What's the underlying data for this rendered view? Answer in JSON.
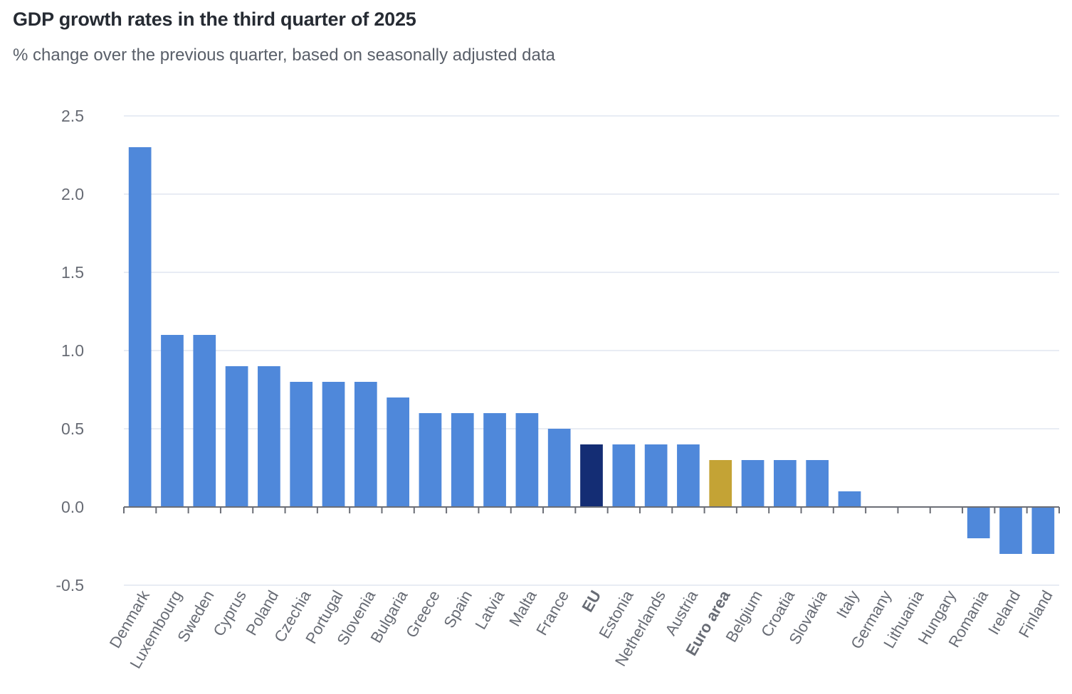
{
  "title": "GDP growth rates in the third quarter of 2025",
  "subtitle": "% change over the previous quarter, based on seasonally adjusted data",
  "colors": {
    "country": "#4f88da",
    "eu": "#142d74",
    "euro_area": "#c4a335",
    "grid": "#e1e6f0",
    "axis": "#6b6e76",
    "tick_text": "#676b74"
  },
  "chart_data": {
    "type": "bar",
    "title": "GDP growth rates in the third quarter of 2025",
    "subtitle": "% change over the previous quarter, based on seasonally adjusted data",
    "xlabel": "",
    "ylabel": "",
    "ylim": [
      -0.5,
      2.5
    ],
    "yticks": [
      -0.5,
      0.0,
      0.5,
      1.0,
      1.5,
      2.0,
      2.5
    ],
    "ytick_labels": [
      "-0.5",
      "0.0",
      "0.5",
      "1.0",
      "1.5",
      "2.0",
      "2.5"
    ],
    "grid": true,
    "legend": "none",
    "categories": [
      "Denmark",
      "Luxembourg",
      "Sweden",
      "Cyprus",
      "Poland",
      "Czechia",
      "Portugal",
      "Slovenia",
      "Bulgaria",
      "Greece",
      "Spain",
      "Latvia",
      "Malta",
      "France",
      "EU",
      "Estonia",
      "Netherlands",
      "Austria",
      "Euro area",
      "Belgium",
      "Croatia",
      "Slovakia",
      "Italy",
      "Germany",
      "Lithuania",
      "Hungary",
      "Romania",
      "Ireland",
      "Finland"
    ],
    "values": [
      2.3,
      1.1,
      1.1,
      0.9,
      0.9,
      0.8,
      0.8,
      0.8,
      0.7,
      0.6,
      0.6,
      0.6,
      0.6,
      0.5,
      0.4,
      0.4,
      0.4,
      0.4,
      0.3,
      0.3,
      0.3,
      0.3,
      0.1,
      0.0,
      0.0,
      0.0,
      -0.2,
      -0.3,
      -0.3
    ],
    "highlight": {
      "EU": "eu",
      "Euro area": "euro_area"
    },
    "bold_labels": [
      "EU",
      "Euro area"
    ]
  }
}
